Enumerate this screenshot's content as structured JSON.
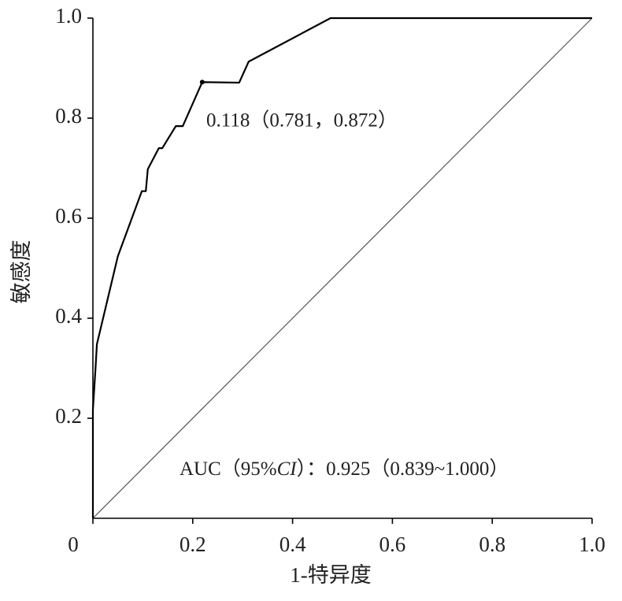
{
  "chart_data": {
    "type": "line",
    "xlabel": "1-特异度",
    "ylabel": "敏感度",
    "xlim": [
      0,
      1
    ],
    "ylim": [
      0,
      1
    ],
    "xticks": [
      0,
      0.2,
      0.4,
      0.6,
      0.8,
      {
        "value": 1,
        "label": "1.0"
      }
    ],
    "yticks": [
      0.2,
      0.4,
      0.6,
      0.8,
      {
        "value": 1,
        "label": "1.0"
      }
    ],
    "series": [
      {
        "color": "#000000",
        "x": [
          0,
          0,
          0.005,
          0.008,
          0.05,
          0.098,
          0.106,
          0.11,
          0.132,
          0.139,
          0.166,
          0.18,
          0.219,
          0.293,
          0.312,
          0.476,
          1
        ],
        "values": [
          0,
          0.217,
          0.296,
          0.348,
          0.524,
          0.654,
          0.654,
          0.698,
          0.74,
          0.74,
          0.784,
          0.784,
          0.872,
          0.871,
          0.913,
          1,
          1
        ]
      }
    ],
    "highlight": {
      "x": 0.219,
      "y": 0.872,
      "label": "0.118（0.781，0.872）"
    },
    "auc_label": [
      "AUC（95%",
      "CI",
      "）：0.925（0.839~1.000）"
    ]
  }
}
